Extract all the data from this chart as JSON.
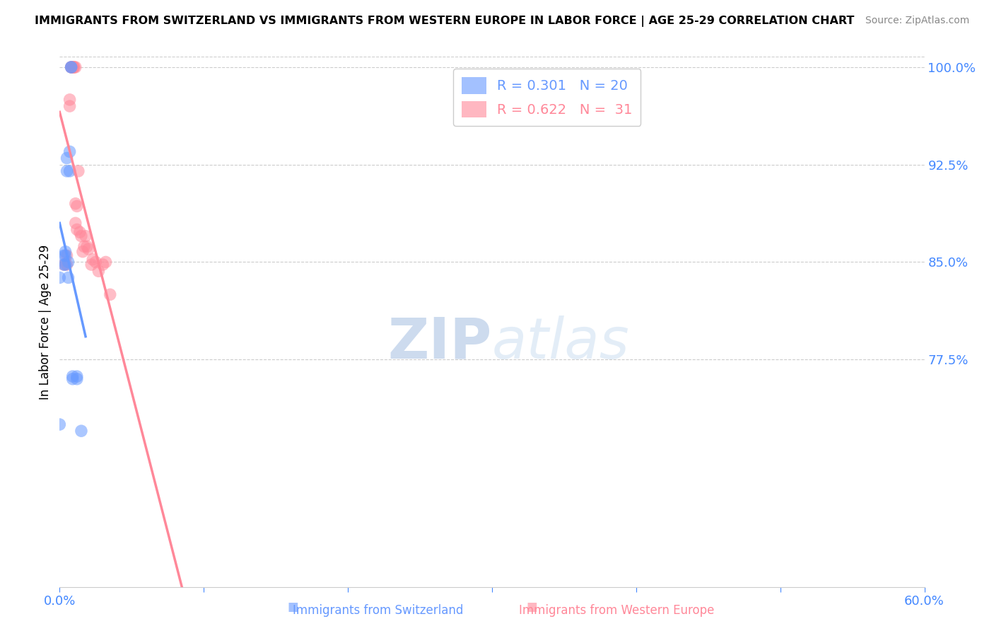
{
  "title": "IMMIGRANTS FROM SWITZERLAND VS IMMIGRANTS FROM WESTERN EUROPE IN LABOR FORCE | AGE 25-29 CORRELATION CHART",
  "source": "Source: ZipAtlas.com",
  "ylabel": "In Labor Force | Age 25-29",
  "xlim": [
    0.0,
    0.6
  ],
  "ylim": [
    0.6,
    1.008
  ],
  "yticks": [
    0.775,
    0.85,
    0.925,
    1.0
  ],
  "xticks": [
    0.0,
    0.1,
    0.2,
    0.3,
    0.4,
    0.5,
    0.6
  ],
  "swiss_color": "#6699ff",
  "western_color": "#ff8899",
  "swiss_R": 0.301,
  "swiss_N": 20,
  "western_R": 0.622,
  "western_N": 31,
  "swiss_x": [
    0.0,
    0.0,
    0.003,
    0.003,
    0.004,
    0.004,
    0.004,
    0.005,
    0.005,
    0.006,
    0.006,
    0.007,
    0.007,
    0.008,
    0.008,
    0.009,
    0.009,
    0.012,
    0.012,
    0.015
  ],
  "swiss_y": [
    0.725,
    0.838,
    0.848,
    0.855,
    0.848,
    0.855,
    0.858,
    0.92,
    0.93,
    0.838,
    0.85,
    0.92,
    0.935,
    1.0,
    1.0,
    0.76,
    0.762,
    0.76,
    0.762,
    0.72
  ],
  "western_x": [
    0.003,
    0.005,
    0.005,
    0.007,
    0.007,
    0.008,
    0.008,
    0.009,
    0.009,
    0.01,
    0.01,
    0.011,
    0.011,
    0.011,
    0.012,
    0.012,
    0.013,
    0.014,
    0.015,
    0.016,
    0.017,
    0.018,
    0.019,
    0.02,
    0.022,
    0.023,
    0.025,
    0.027,
    0.03,
    0.032,
    0.035
  ],
  "western_y": [
    0.848,
    0.848,
    0.855,
    0.97,
    0.975,
    1.0,
    1.0,
    1.0,
    1.0,
    1.0,
    1.0,
    0.88,
    0.895,
    1.0,
    0.875,
    0.893,
    0.92,
    0.873,
    0.87,
    0.858,
    0.862,
    0.87,
    0.862,
    0.86,
    0.848,
    0.852,
    0.85,
    0.843,
    0.848,
    0.85,
    0.825
  ],
  "watermark_zip": "ZIP",
  "watermark_atlas": "atlas",
  "grid_color": "#cccccc",
  "tick_color": "#4488ff",
  "axis_color": "#cccccc",
  "title_fontsize": 11.5,
  "source_fontsize": 10
}
